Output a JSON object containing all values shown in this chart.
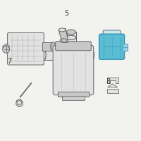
{
  "bg_color": "#f2f2ee",
  "part_color": "#5bbdd4",
  "line_color": "#666666",
  "dark_line": "#444444",
  "label_color": "#333333",
  "highlight_edge": "#3a9ab8",
  "gray_fill": "#e2e2e2",
  "gray_dark": "#c8c8c8",
  "labels": {
    "5": [
      0.47,
      0.91
    ],
    "7": [
      0.065,
      0.565
    ],
    "8": [
      0.77,
      0.42
    ]
  },
  "figsize": [
    2.0,
    2.0
  ],
  "dpi": 100
}
